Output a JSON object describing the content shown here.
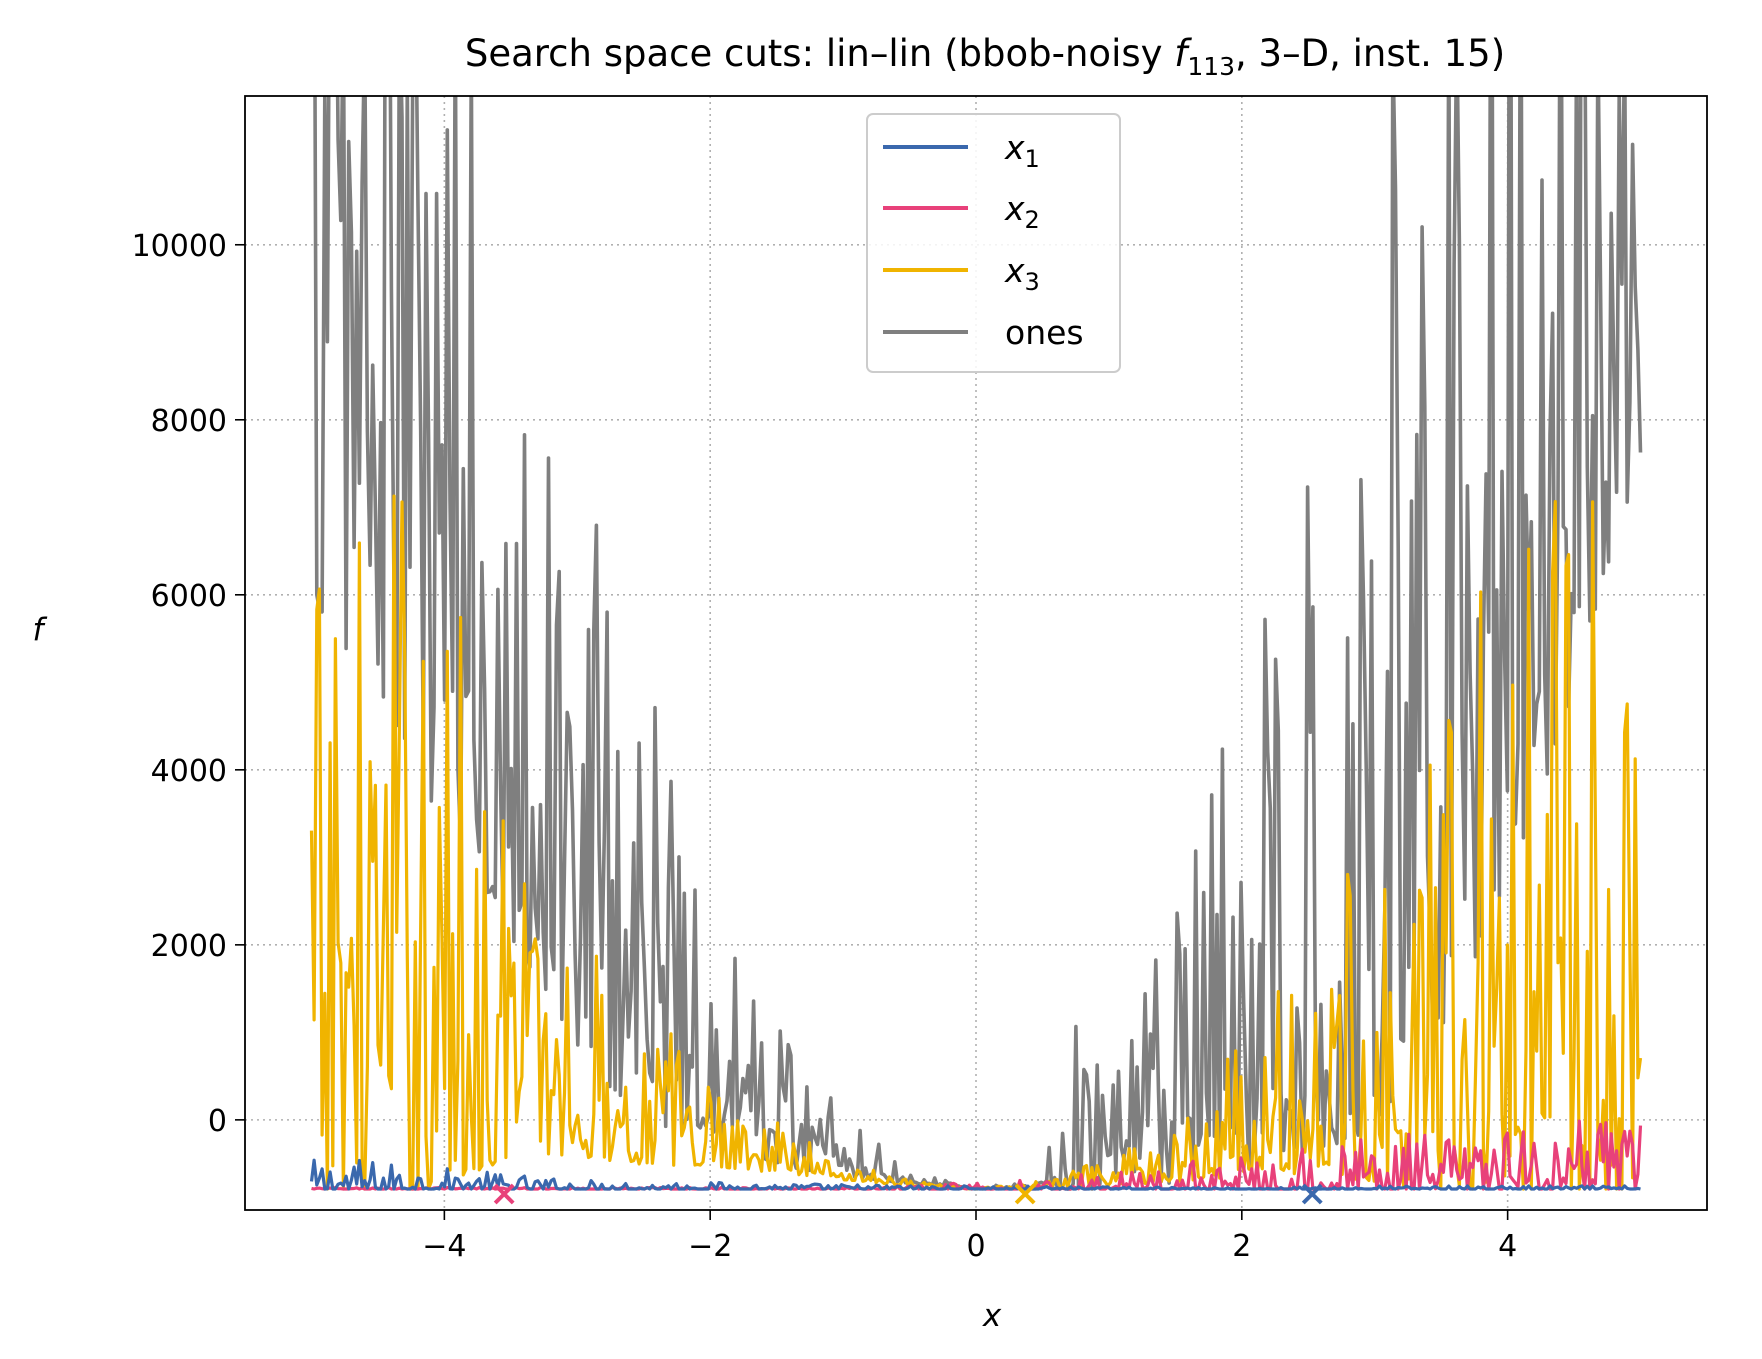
{
  "chart_data": {
    "type": "line",
    "title": "Search space cuts: lin–lin (bbob-noisy f113, 3–D, inst. 15)",
    "title_parts": {
      "prefix": "Search space cuts: lin–lin (bbob-noisy ",
      "func": "f",
      "func_sub": "113",
      "suffix": ", 3–D, inst. 15)"
    },
    "xlabel": "x",
    "ylabel": "f",
    "xlim": [
      -5.5,
      5.5
    ],
    "ylim": [
      -1030,
      11700
    ],
    "x_ticks": [
      -4,
      -2,
      0,
      2,
      4
    ],
    "x_tick_labels": [
      "−4",
      "−2",
      "0",
      "2",
      "4"
    ],
    "y_ticks": [
      0,
      2000,
      4000,
      6000,
      8000,
      10000
    ],
    "y_tick_labels": [
      "0",
      "2000",
      "4000",
      "6000",
      "8000",
      "10000"
    ],
    "grid": true,
    "legend_position": "upper center",
    "x_range": [
      -5,
      5
    ],
    "baseline": -790,
    "series": [
      {
        "name": "x1",
        "legend_base": "x",
        "legend_sub": "1",
        "color": "#3a68ad",
        "stroke_width": 3.2,
        "x_keypoints": [
          -5,
          -4.7,
          -4,
          -3,
          -2,
          0,
          2,
          3,
          4,
          5
        ],
        "y_keypoints": [
          -780,
          -760,
          -770,
          -790,
          -785,
          -790,
          -795,
          -790,
          -790,
          -790
        ],
        "spike_amplitude": [
          180,
          180,
          120,
          60,
          40,
          20,
          10,
          20,
          20,
          20
        ],
        "marker_x": 2.53
      },
      {
        "name": "x2",
        "legend_base": "x",
        "legend_sub": "2",
        "color": "#e8417a",
        "stroke_width": 3.2,
        "x_keypoints": [
          -5,
          -3,
          -1,
          0,
          1,
          2,
          3,
          4,
          5
        ],
        "y_keypoints": [
          -790,
          -790,
          -790,
          -790,
          -780,
          -760,
          -740,
          -720,
          -700
        ],
        "spike_amplitude": [
          10,
          10,
          10,
          40,
          100,
          200,
          300,
          350,
          400
        ],
        "marker_x": -3.55
      },
      {
        "name": "x3",
        "legend_base": "x",
        "legend_sub": "3",
        "color": "#f0b400",
        "stroke_width": 3.2,
        "x_keypoints": [
          -5,
          -4.5,
          -4,
          -3.5,
          -3,
          -2.5,
          -2,
          -1.5,
          -1,
          -0.5,
          0,
          0.5,
          1,
          1.5,
          2,
          2.5,
          3,
          3.5,
          4,
          4.5,
          5
        ],
        "y_keypoints": [
          300,
          500,
          400,
          300,
          0,
          -200,
          -350,
          -500,
          -650,
          -740,
          -790,
          -770,
          -700,
          -600,
          -400,
          -200,
          0,
          200,
          400,
          500,
          200
        ],
        "spike_amplitude": [
          3500,
          4000,
          3500,
          2000,
          1200,
          900,
          500,
          300,
          100,
          40,
          5,
          40,
          150,
          300,
          700,
          1200,
          2000,
          3000,
          3500,
          4000,
          3500
        ],
        "marker_x": 0.37
      },
      {
        "name": "ones",
        "legend_base": "ones",
        "legend_sub": "",
        "color": "#7f7f7f",
        "stroke_width": 3.6,
        "x_keypoints": [
          -5,
          -4.5,
          -4,
          -3.5,
          -3,
          -2.5,
          -2,
          -1.5,
          -1,
          -0.5,
          0,
          0.5,
          0.7,
          1,
          1.5,
          2,
          2.5,
          3,
          3.5,
          4,
          4.5,
          5
        ],
        "y_keypoints": [
          8000,
          7000,
          5000,
          3500,
          2000,
          1000,
          300,
          -200,
          -500,
          -700,
          -790,
          -760,
          -650,
          -500,
          -200,
          300,
          1000,
          2000,
          3500,
          5000,
          7000,
          9000
        ],
        "spike_amplitude": [
          6000,
          6000,
          5000,
          4000,
          3500,
          3000,
          1200,
          900,
          400,
          80,
          10,
          40,
          1000,
          600,
          1500,
          2500,
          4000,
          6000,
          7000,
          7000,
          6000,
          4000
        ],
        "marker_x": null
      }
    ]
  }
}
